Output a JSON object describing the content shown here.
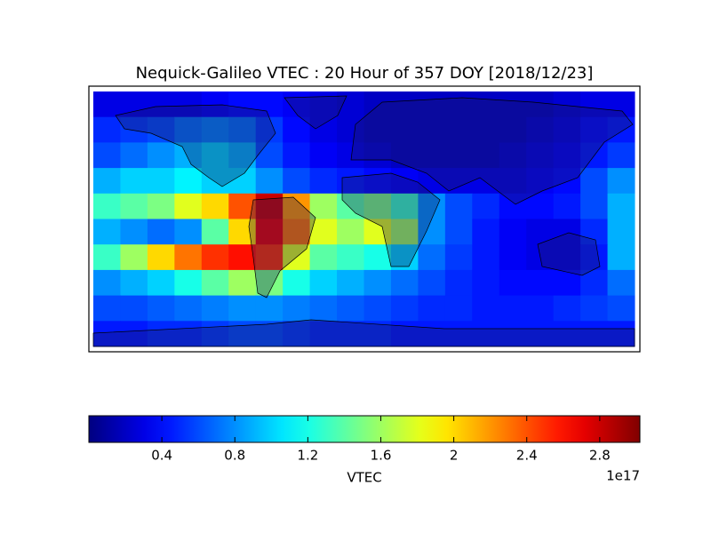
{
  "chart_data": {
    "type": "heatmap",
    "title": "Nequick-Galileo VTEC : 20 Hour of 357 DOY [2018/12/23]",
    "colormap": "jet",
    "values": [
      [
        0.3,
        0.3,
        0.3,
        0.3,
        0.35,
        0.4,
        0.4,
        0.35,
        0.3,
        0.25,
        0.2,
        0.2,
        0.2,
        0.2,
        0.2,
        0.2,
        0.2,
        0.25,
        0.3,
        0.3
      ],
      [
        0.5,
        0.55,
        0.6,
        0.7,
        0.75,
        0.7,
        0.55,
        0.4,
        0.3,
        0.25,
        0.2,
        0.2,
        0.2,
        0.2,
        0.2,
        0.2,
        0.25,
        0.3,
        0.4,
        0.45
      ],
      [
        0.6,
        0.7,
        0.8,
        0.9,
        1.0,
        0.9,
        0.6,
        0.45,
        0.35,
        0.3,
        0.25,
        0.2,
        0.2,
        0.2,
        0.2,
        0.25,
        0.3,
        0.35,
        0.45,
        0.55
      ],
      [
        0.9,
        1.0,
        1.0,
        1.1,
        1.0,
        1.0,
        0.8,
        0.6,
        0.5,
        0.45,
        0.4,
        0.35,
        0.3,
        0.3,
        0.3,
        0.3,
        0.35,
        0.4,
        0.6,
        0.8
      ],
      [
        1.3,
        1.4,
        1.5,
        1.8,
        2.0,
        2.4,
        2.8,
        2.2,
        1.6,
        1.4,
        1.5,
        1.3,
        0.8,
        0.6,
        0.5,
        0.4,
        0.4,
        0.45,
        0.6,
        0.9
      ],
      [
        0.9,
        0.8,
        0.7,
        0.8,
        1.4,
        2.0,
        2.7,
        2.3,
        1.8,
        1.6,
        1.8,
        1.6,
        0.8,
        0.6,
        0.45,
        0.35,
        0.3,
        0.3,
        0.5,
        0.9
      ],
      [
        1.3,
        1.6,
        2.0,
        2.3,
        2.5,
        2.6,
        2.5,
        1.8,
        1.4,
        1.3,
        1.2,
        1.0,
        0.7,
        0.55,
        0.45,
        0.35,
        0.3,
        0.3,
        0.45,
        0.9
      ],
      [
        0.8,
        0.9,
        1.0,
        1.2,
        1.4,
        1.6,
        1.5,
        1.2,
        1.0,
        0.9,
        0.8,
        0.7,
        0.6,
        0.5,
        0.45,
        0.4,
        0.4,
        0.4,
        0.5,
        0.7
      ],
      [
        0.6,
        0.6,
        0.65,
        0.7,
        0.75,
        0.8,
        0.8,
        0.75,
        0.7,
        0.65,
        0.6,
        0.55,
        0.5,
        0.5,
        0.45,
        0.45,
        0.45,
        0.5,
        0.55,
        0.6
      ],
      [
        0.45,
        0.45,
        0.5,
        0.5,
        0.55,
        0.6,
        0.6,
        0.55,
        0.5,
        0.5,
        0.5,
        0.45,
        0.45,
        0.45,
        0.45,
        0.45,
        0.45,
        0.45,
        0.45,
        0.45
      ]
    ],
    "colorbar": {
      "label": "VTEC",
      "offset_label": "1e17",
      "clim": [
        0,
        3.02
      ],
      "ticks": [
        0.4,
        0.8,
        1.2,
        1.6,
        2.0,
        2.4,
        2.8
      ]
    }
  }
}
